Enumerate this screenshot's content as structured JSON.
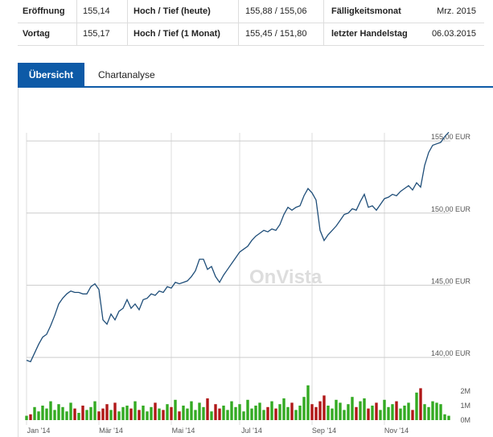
{
  "table": {
    "rows": [
      [
        "Eröffnung",
        "155,14",
        "Hoch / Tief (heute)",
        "155,88 / 155,06",
        "Fälligkeitsmonat",
        "Mrz. 2015"
      ],
      [
        "Vortag",
        "155,17",
        "Hoch / Tief (1 Monat)",
        "155,45 / 151,80",
        "letzter Handelstag",
        "06.03.2015"
      ]
    ]
  },
  "tabs": [
    "Übersicht",
    "Chartanalyse"
  ],
  "chart_data": {
    "type": "line",
    "watermark": "OnVista",
    "series": [
      {
        "color": "#1f4e79",
        "values": [
          139.8,
          139.7,
          140.3,
          140.9,
          141.4,
          141.6,
          142.2,
          142.9,
          143.7,
          144.1,
          144.4,
          144.6,
          144.5,
          144.5,
          144.4,
          144.4,
          144.9,
          145.1,
          144.7,
          142.6,
          142.3,
          143.0,
          142.6,
          143.2,
          143.4,
          144.0,
          143.4,
          143.7,
          143.3,
          144.0,
          144.1,
          144.4,
          144.3,
          144.6,
          144.5,
          144.9,
          144.8,
          145.2,
          145.1,
          145.2,
          145.3,
          145.6,
          146.0,
          146.8,
          146.8,
          146.1,
          146.3,
          145.6,
          145.2,
          145.7,
          146.1,
          146.5,
          146.9,
          147.3,
          147.5,
          147.7,
          148.1,
          148.4,
          148.6,
          148.8,
          148.7,
          148.9,
          148.8,
          149.2,
          149.9,
          150.4,
          150.2,
          150.4,
          150.5,
          151.2,
          151.7,
          151.4,
          150.9,
          148.8,
          148.1,
          148.5,
          148.8,
          149.1,
          149.5,
          149.9,
          150.0,
          150.3,
          150.2,
          150.8,
          151.3,
          150.4,
          150.5,
          150.2,
          150.6,
          151.0,
          151.1,
          151.3,
          151.2,
          151.5,
          151.7,
          151.9,
          151.6,
          152.1,
          151.8,
          153.3,
          154.2,
          154.7,
          154.8,
          154.9,
          155.3,
          155.6
        ]
      }
    ],
    "volume": {
      "up_color": "#33aa22",
      "down_color": "#b01818",
      "values": [
        0.3,
        0.4,
        0.9,
        0.6,
        1.0,
        0.8,
        1.3,
        0.7,
        1.1,
        0.9,
        0.6,
        1.2,
        0.8,
        0.5,
        1.0,
        0.7,
        0.9,
        1.3,
        0.6,
        0.8,
        1.1,
        0.7,
        1.2,
        0.6,
        0.9,
        1.0,
        0.8,
        1.3,
        0.7,
        1.0,
        0.6,
        0.9,
        1.2,
        0.8,
        0.7,
        1.1,
        0.9,
        1.4,
        0.6,
        1.0,
        0.8,
        1.3,
        0.7,
        1.2,
        0.9,
        1.5,
        0.6,
        1.1,
        0.8,
        1.0,
        0.7,
        1.3,
        0.9,
        1.1,
        0.6,
        1.4,
        0.8,
        1.0,
        1.2,
        0.7,
        0.9,
        1.3,
        0.8,
        1.1,
        1.5,
        0.9,
        1.2,
        0.7,
        1.0,
        1.6,
        2.4,
        1.1,
        0.9,
        1.3,
        1.7,
        1.0,
        0.8,
        1.4,
        1.2,
        0.7,
        1.1,
        1.6,
        0.9,
        1.3,
        1.5,
        0.8,
        1.0,
        1.2,
        0.7,
        1.4,
        0.9,
        1.1,
        1.3,
        0.8,
        1.0,
        1.2,
        0.7,
        1.9,
        2.2,
        1.1,
        0.9,
        1.3,
        1.2,
        1.1,
        0.4,
        0.3
      ],
      "ylim": [
        0,
        2.5
      ],
      "yticks": [
        {
          "value": 0,
          "label": "0M"
        },
        {
          "value": 1,
          "label": "1M"
        },
        {
          "value": 2,
          "label": "2M"
        }
      ]
    },
    "ylim": [
      139,
      156.4
    ],
    "yticks": [
      {
        "value": 140,
        "label": "140,00 EUR"
      },
      {
        "value": 145,
        "label": "145,00 EUR"
      },
      {
        "value": 150,
        "label": "150,00 EUR"
      },
      {
        "value": 155,
        "label": "155,00 EUR"
      }
    ],
    "xticks": [
      {
        "value": 0,
        "label": "Jan '14"
      },
      {
        "value": 18,
        "label": "Mär '14"
      },
      {
        "value": 36,
        "label": "Mai '14"
      },
      {
        "value": 53,
        "label": "Jul '14"
      },
      {
        "value": 71,
        "label": "Sep '14"
      },
      {
        "value": 89,
        "label": "Nov '14"
      }
    ],
    "grid": true
  }
}
